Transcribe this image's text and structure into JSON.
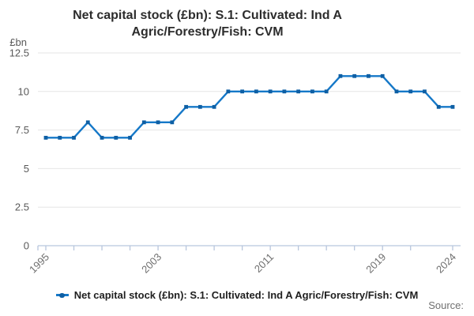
{
  "title": {
    "line1": "Net capital stock (£bn): S.1: Cultivated: Ind A",
    "line2": "Agric/Forestry/Fish: CVM"
  },
  "legend": {
    "label": "Net capital stock (£bn): S.1: Cultivated: Ind A Agric/Forestry/Fish: CVM"
  },
  "footer": {
    "source_label": "Source:"
  },
  "colors": {
    "line": "#1578c8",
    "marker": "#0e5fa4",
    "grid": "#e6e6e6",
    "axis": "#b8c6dd",
    "tick_label": "#6f6f6f",
    "y_label": "#595959",
    "title": "#2c2c2c",
    "legend_text": "#1f1f1f",
    "source": "#707070"
  },
  "chart_data": {
    "type": "line",
    "title": "Net capital stock (£bn): S.1: Cultivated: Ind A Agric/Forestry/Fish: CVM",
    "ylabel": "£bn",
    "xlabel": "",
    "ylim": [
      0,
      12.5
    ],
    "y_ticks": [
      0,
      2.5,
      5,
      7.5,
      10,
      12.5
    ],
    "grid": true,
    "legend_position": "bottom",
    "x": [
      1995,
      1996,
      1997,
      1998,
      1999,
      2000,
      2001,
      2002,
      2003,
      2004,
      2005,
      2006,
      2007,
      2008,
      2009,
      2010,
      2011,
      2012,
      2013,
      2014,
      2015,
      2016,
      2017,
      2018,
      2019,
      2020,
      2021,
      2022,
      2023,
      2024
    ],
    "series": [
      {
        "name": "Net capital stock (£bn): S.1: Cultivated: Ind A Agric/Forestry/Fish: CVM",
        "values": [
          7,
          7,
          7,
          8,
          7,
          7,
          7,
          8,
          8,
          8,
          9,
          9,
          9,
          10,
          10,
          10,
          10,
          10,
          10,
          10,
          10,
          11,
          11,
          11,
          11,
          10,
          10,
          10,
          9,
          9
        ]
      }
    ],
    "x_tick_labels": [
      "1995",
      "2003",
      "2011",
      "2019",
      "2024"
    ],
    "x_tick_label_years": [
      1995,
      2003,
      2011,
      2019,
      2024
    ],
    "x_minor_tick_step": 2
  }
}
